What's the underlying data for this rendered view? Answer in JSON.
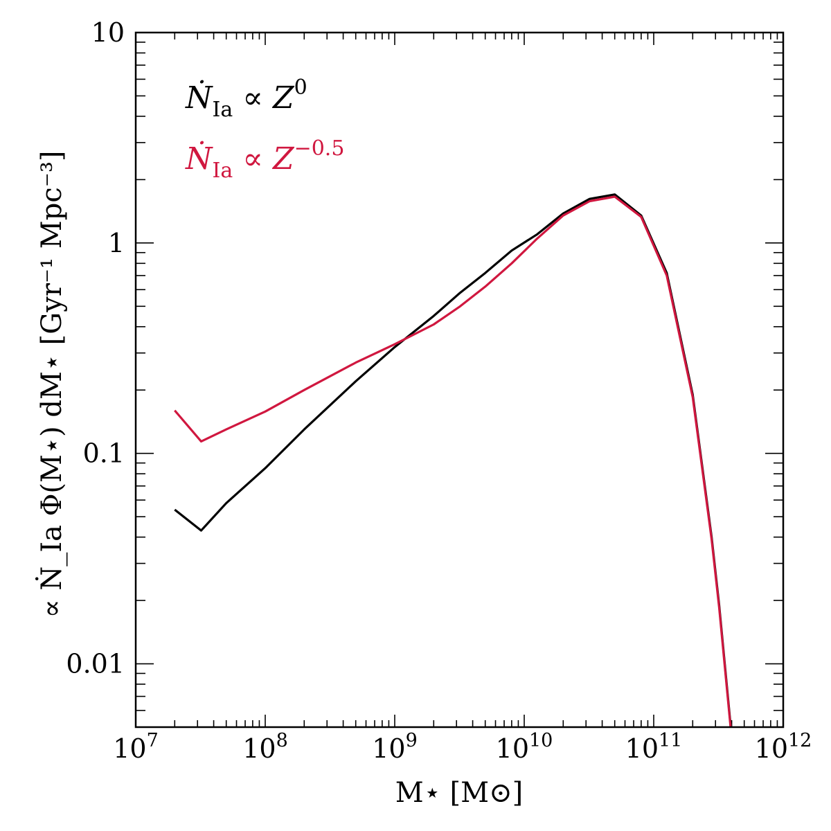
{
  "chart_data": {
    "type": "line",
    "xscale": "log",
    "yscale": "log",
    "xlim": [
      10000000.0,
      1000000000000.0
    ],
    "ylim": [
      0.005,
      10
    ],
    "xlabel": "M⋆ [M⊙]",
    "ylabel": "∝ Ṅ_Ia Φ(M⋆) dM⋆ [Gyr⁻¹ Mpc⁻³]",
    "x_ticks": [
      {
        "value": 10000000.0,
        "base": "10",
        "exp": "7"
      },
      {
        "value": 100000000.0,
        "base": "10",
        "exp": "8"
      },
      {
        "value": 1000000000.0,
        "base": "10",
        "exp": "9"
      },
      {
        "value": 10000000000.0,
        "base": "10",
        "exp": "10"
      },
      {
        "value": 100000000000.0,
        "base": "10",
        "exp": "11"
      },
      {
        "value": 1000000000000.0,
        "base": "10",
        "exp": "12"
      }
    ],
    "y_ticks": [
      {
        "value": 0.01,
        "label": "0.01"
      },
      {
        "value": 0.1,
        "label": "0.1"
      },
      {
        "value": 1,
        "label": "1"
      },
      {
        "value": 10,
        "label": "10"
      }
    ],
    "grid": false,
    "legend_position": "top-left",
    "series": [
      {
        "name": "Ṅ_Ia ∝ Z^0",
        "label_main": "Ṅ",
        "label_sub": "Ia",
        "label_rest": " ∝ Z",
        "label_sup": "0",
        "color": "#000000",
        "x": [
          20000000.0,
          32000000.0,
          50000000.0,
          100000000.0,
          200000000.0,
          500000000.0,
          1000000000.0,
          2000000000.0,
          3200000000.0,
          5000000000.0,
          8000000000.0,
          12600000000.0,
          20000000000.0,
          32000000000.0,
          50000000000.0,
          80000000000.0,
          126000000000.0,
          200000000000.0,
          280000000000.0,
          320000000000.0,
          400000000000.0
        ],
        "y": [
          0.054,
          0.043,
          0.058,
          0.085,
          0.13,
          0.22,
          0.32,
          0.45,
          0.58,
          0.72,
          0.92,
          1.1,
          1.38,
          1.62,
          1.7,
          1.35,
          0.72,
          0.19,
          0.04,
          0.019,
          0.0045
        ]
      },
      {
        "name": "Ṅ_Ia ∝ Z^-0.5",
        "label_main": "Ṅ",
        "label_sub": "Ia",
        "label_rest": " ∝ Z",
        "label_sup": "−0.5",
        "color": "#d0173f",
        "x": [
          20000000.0,
          32000000.0,
          50000000.0,
          100000000.0,
          200000000.0,
          500000000.0,
          1000000000.0,
          2000000000.0,
          3200000000.0,
          5000000000.0,
          8000000000.0,
          12600000000.0,
          20000000000.0,
          32000000000.0,
          50000000000.0,
          80000000000.0,
          126000000000.0,
          200000000000.0,
          280000000000.0,
          320000000000.0,
          400000000000.0
        ],
        "y": [
          0.16,
          0.114,
          0.13,
          0.158,
          0.2,
          0.27,
          0.33,
          0.41,
          0.5,
          0.62,
          0.8,
          1.05,
          1.35,
          1.58,
          1.66,
          1.33,
          0.7,
          0.185,
          0.039,
          0.0185,
          0.0044
        ]
      }
    ]
  }
}
